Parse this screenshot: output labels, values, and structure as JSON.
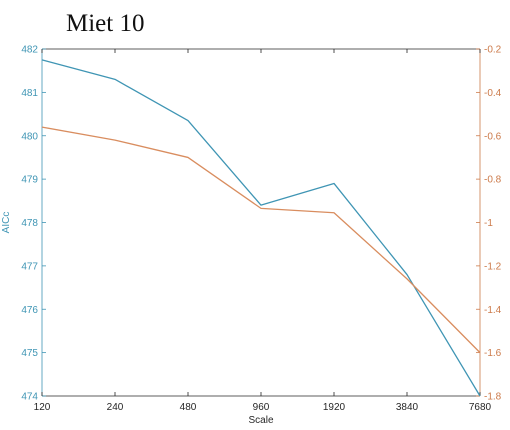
{
  "chart_data": {
    "type": "line",
    "title": "Miet 10",
    "xlabel": "Scale",
    "x_scale": "log2",
    "categories": [
      "120",
      "240",
      "480",
      "960",
      "1920",
      "3840",
      "7680"
    ],
    "x": [
      120,
      240,
      480,
      960,
      1920,
      3840,
      7680
    ],
    "y_left": {
      "label": "AICc",
      "lim": [
        474,
        482
      ],
      "ticks": [
        "474",
        "475",
        "476",
        "477",
        "478",
        "479",
        "480",
        "481",
        "482"
      ],
      "color": "#3f95b4"
    },
    "y_right": {
      "label": "",
      "lim": [
        -1.8,
        -0.2
      ],
      "ticks": [
        "-1.8",
        "-1.6",
        "-1.4",
        "-1.2",
        "-1",
        "-0.8",
        "-0.6",
        "-0.4",
        "-0.2"
      ],
      "color": "#cc7a4a"
    },
    "series": [
      {
        "axis": "left",
        "color": "#3f95b4",
        "values": [
          481.75,
          481.3,
          480.35,
          478.4,
          478.9,
          476.8,
          474.0
        ]
      },
      {
        "axis": "right",
        "color": "#d98d5f",
        "values": [
          -0.56,
          -0.62,
          -0.7,
          -0.935,
          -0.955,
          -1.26,
          -1.6
        ]
      }
    ],
    "grid": false,
    "legend": "none"
  }
}
